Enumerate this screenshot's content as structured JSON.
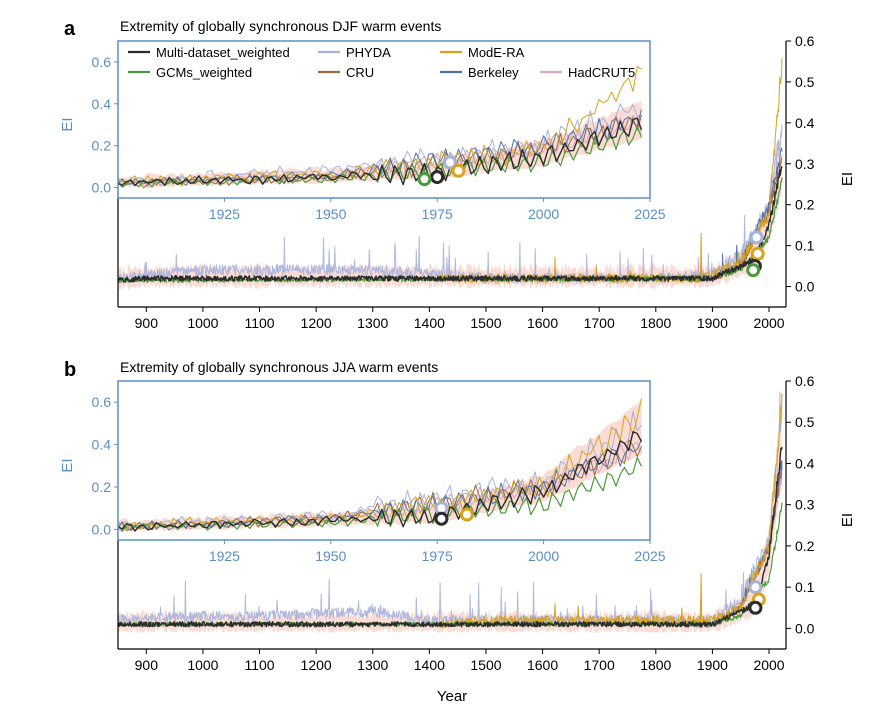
{
  "panels": [
    {
      "letter": "a",
      "title": "Extremity of globally synchronous DJF warm events"
    },
    {
      "letter": "b",
      "title": "Extremity of globally synchronous JJA warm events"
    }
  ],
  "xlabel": "Year",
  "colors": {
    "main_axis": "#000000",
    "inset_axis": "#5b8fc7",
    "Multi-dataset_weighted": "#2b2b2b",
    "GCMs_weighted": "#4a9a3a",
    "PHYDA": "#a7b1da",
    "CRU": "#9d6b3a",
    "ModE-RA": "#d9a21b",
    "Berkeley": "#4f73a9",
    "HadCRUT5": "#d8a7c6",
    "uncertainty_band": "#f6c0b3"
  },
  "legend": {
    "items": [
      {
        "name": "Multi-dataset_weighted",
        "color": "#2b2b2b"
      },
      {
        "name": "PHYDA",
        "color": "#a7b1da"
      },
      {
        "name": "ModE-RA",
        "color": "#d9a21b"
      },
      {
        "name": "GCMs_weighted",
        "color": "#4a9a3a"
      },
      {
        "name": "CRU",
        "color": "#9d6b3a"
      },
      {
        "name": "Berkeley",
        "color": "#4f73a9"
      },
      {
        "name": "HadCRUT5",
        "color": "#d8a7c6"
      }
    ]
  },
  "chart_data": [
    {
      "type": "line",
      "panel": "a",
      "title": "Extremity of globally synchronous DJF warm events",
      "xlabel": "Year",
      "ylabel": "EI",
      "xlim": [
        850,
        2030
      ],
      "ylim": [
        -0.05,
        0.6
      ],
      "x_ticks": [
        900,
        1000,
        1100,
        1200,
        1300,
        1400,
        1500,
        1600,
        1700,
        1800,
        1900,
        2000
      ],
      "y_ticks": [
        0.0,
        0.1,
        0.2,
        0.3,
        0.4,
        0.5,
        0.6
      ],
      "series": [
        {
          "name": "Multi-dataset_weighted",
          "x": [
            850,
            900,
            1000,
            1100,
            1200,
            1300,
            1400,
            1500,
            1600,
            1700,
            1800,
            1900,
            1950,
            1975,
            2000,
            2023
          ],
          "y": [
            0.015,
            0.02,
            0.02,
            0.02,
            0.02,
            0.02,
            0.02,
            0.02,
            0.02,
            0.02,
            0.02,
            0.02,
            0.05,
            0.07,
            0.15,
            0.3
          ]
        },
        {
          "name": "PHYDA",
          "x": [
            850,
            1000,
            1100,
            1300,
            1400,
            1500,
            1800,
            1900,
            1950,
            2000,
            2023
          ],
          "y": [
            0.02,
            0.04,
            0.04,
            0.04,
            0.03,
            0.02,
            0.02,
            0.03,
            0.08,
            0.2,
            0.4
          ]
        },
        {
          "name": "ModE-RA",
          "x": [
            1421,
            1500,
            1700,
            1880,
            1900,
            1950,
            2000,
            2023
          ],
          "y": [
            0.02,
            0.02,
            0.02,
            0.02,
            0.03,
            0.06,
            0.18,
            0.55
          ]
        },
        {
          "name": "Berkeley",
          "x": [
            1850,
            1900,
            1950,
            2000,
            2023
          ],
          "y": [
            0.02,
            0.02,
            0.06,
            0.2,
            0.33
          ]
        },
        {
          "name": "CRU",
          "x": [
            1901,
            1950,
            2000,
            2023
          ],
          "y": [
            0.02,
            0.05,
            0.18,
            0.32
          ]
        },
        {
          "name": "HadCRUT5",
          "x": [
            1850,
            1900,
            1950,
            2000,
            2023
          ],
          "y": [
            0.02,
            0.02,
            0.05,
            0.19,
            0.31
          ]
        },
        {
          "name": "GCMs_weighted",
          "x": [
            850,
            1900,
            1950,
            2000,
            2023
          ],
          "y": [
            0.015,
            0.02,
            0.04,
            0.12,
            0.26
          ]
        }
      ],
      "markers": [
        {
          "series": "PHYDA",
          "x": 1978,
          "y": 0.12
        },
        {
          "series": "ModE-RA",
          "x": 1980,
          "y": 0.08
        },
        {
          "series": "Multi-dataset_weighted",
          "x": 1975,
          "y": 0.05
        },
        {
          "series": "GCMs_weighted",
          "x": 1972,
          "y": 0.04
        }
      ],
      "inset": {
        "xlim": [
          1900,
          2025
        ],
        "ylim": [
          -0.05,
          0.7
        ],
        "x_ticks": [
          1925,
          1950,
          1975,
          2000,
          2025
        ],
        "y_ticks": [
          0.0,
          0.2,
          0.4,
          0.6
        ],
        "ylabel": "EI"
      }
    },
    {
      "type": "line",
      "panel": "b",
      "title": "Extremity of globally synchronous JJA warm events",
      "xlabel": "Year",
      "ylabel": "EI",
      "xlim": [
        850,
        2030
      ],
      "ylim": [
        -0.05,
        0.6
      ],
      "x_ticks": [
        900,
        1000,
        1100,
        1200,
        1300,
        1400,
        1500,
        1600,
        1700,
        1800,
        1900,
        2000
      ],
      "y_ticks": [
        0.0,
        0.1,
        0.2,
        0.3,
        0.4,
        0.5,
        0.6
      ],
      "series": [
        {
          "name": "Multi-dataset_weighted",
          "x": [
            850,
            900,
            1000,
            1100,
            1200,
            1300,
            1400,
            1500,
            1600,
            1700,
            1800,
            1900,
            1950,
            1975,
            2000,
            2023
          ],
          "y": [
            0.01,
            0.01,
            0.01,
            0.01,
            0.01,
            0.01,
            0.01,
            0.01,
            0.01,
            0.01,
            0.01,
            0.01,
            0.04,
            0.06,
            0.18,
            0.45
          ]
        },
        {
          "name": "PHYDA",
          "x": [
            850,
            1000,
            1100,
            1300,
            1400,
            1500,
            1800,
            1900,
            1950,
            2000,
            2023
          ],
          "y": [
            0.02,
            0.03,
            0.03,
            0.04,
            0.02,
            0.02,
            0.02,
            0.02,
            0.07,
            0.22,
            0.5
          ]
        },
        {
          "name": "ModE-RA",
          "x": [
            1421,
            1500,
            1700,
            1880,
            1900,
            1950,
            2000,
            2023
          ],
          "y": [
            0.01,
            0.02,
            0.02,
            0.02,
            0.02,
            0.05,
            0.2,
            0.55
          ]
        },
        {
          "name": "Berkeley",
          "x": [
            1850,
            1900,
            1950,
            2000,
            2023
          ],
          "y": [
            0.01,
            0.01,
            0.05,
            0.2,
            0.4
          ]
        },
        {
          "name": "CRU",
          "x": [
            1901,
            1950,
            2000,
            2023
          ],
          "y": [
            0.01,
            0.05,
            0.2,
            0.4
          ]
        },
        {
          "name": "HadCRUT5",
          "x": [
            1850,
            1900,
            1950,
            2000,
            2023
          ],
          "y": [
            0.01,
            0.01,
            0.05,
            0.2,
            0.38
          ]
        },
        {
          "name": "GCMs_weighted",
          "x": [
            850,
            1900,
            1950,
            2000,
            2023
          ],
          "y": [
            0.01,
            0.01,
            0.03,
            0.12,
            0.3
          ]
        }
      ],
      "markers": [
        {
          "series": "PHYDA",
          "x": 1976,
          "y": 0.1
        },
        {
          "series": "ModE-RA",
          "x": 1982,
          "y": 0.07
        },
        {
          "series": "Multi-dataset_weighted",
          "x": 1976,
          "y": 0.05
        }
      ],
      "inset": {
        "xlim": [
          1900,
          2025
        ],
        "ylim": [
          -0.05,
          0.7
        ],
        "x_ticks": [
          1925,
          1950,
          1975,
          2000,
          2025
        ],
        "y_ticks": [
          0.0,
          0.2,
          0.4,
          0.6
        ],
        "ylabel": "EI"
      }
    }
  ]
}
